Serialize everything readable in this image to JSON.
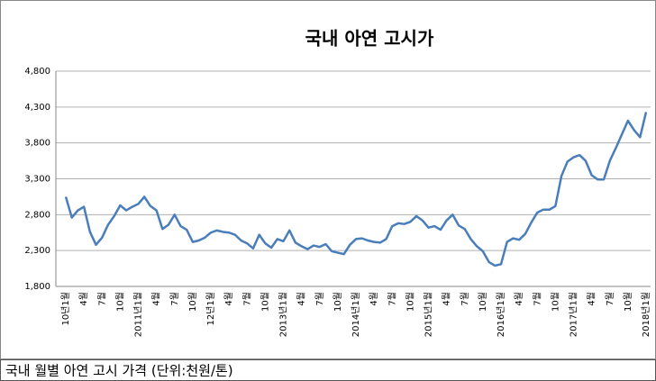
{
  "chart_data": {
    "type": "line",
    "title": "국내 아연 고시가",
    "caption": "국내 월별 아연 고시 가격 (단위:천원/톤)",
    "categories": [
      "10년1월",
      null,
      null,
      "4월",
      null,
      null,
      "7월",
      null,
      null,
      "10월",
      null,
      null,
      "2011년1월",
      null,
      null,
      "4월",
      null,
      null,
      "7월",
      null,
      null,
      "10월",
      null,
      null,
      "12년1월",
      null,
      null,
      "4월",
      null,
      null,
      "7월",
      null,
      null,
      "10월",
      null,
      null,
      "2013년1월",
      null,
      null,
      "4월",
      null,
      null,
      "7월",
      null,
      null,
      "10월",
      null,
      null,
      "2014년1월",
      null,
      null,
      "4월",
      null,
      null,
      "7월",
      null,
      null,
      "10월",
      null,
      null,
      "2015년1월",
      null,
      null,
      "4월",
      null,
      null,
      "7월",
      null,
      null,
      "10월",
      null,
      null,
      "2016년1월",
      null,
      null,
      "4월",
      null,
      null,
      "7월",
      null,
      null,
      "10월",
      null,
      null,
      "2017년1월",
      null,
      null,
      "4월",
      null,
      null,
      "7월",
      null,
      null,
      "10월",
      null,
      null,
      "2018년1월"
    ],
    "series": [
      {
        "name": "국내 아연 고시가",
        "color": "#4a7ebb",
        "values": [
          3050,
          2760,
          2860,
          2910,
          2560,
          2380,
          2480,
          2660,
          2780,
          2930,
          2860,
          2910,
          2950,
          3050,
          2920,
          2860,
          2600,
          2660,
          2800,
          2640,
          2590,
          2420,
          2440,
          2480,
          2550,
          2580,
          2560,
          2550,
          2520,
          2440,
          2400,
          2330,
          2520,
          2400,
          2340,
          2460,
          2430,
          2580,
          2410,
          2360,
          2320,
          2370,
          2350,
          2390,
          2290,
          2270,
          2250,
          2380,
          2460,
          2470,
          2440,
          2420,
          2410,
          2460,
          2640,
          2680,
          2670,
          2700,
          2780,
          2720,
          2620,
          2640,
          2590,
          2720,
          2800,
          2650,
          2600,
          2460,
          2360,
          2290,
          2140,
          2090,
          2110,
          2420,
          2470,
          2450,
          2530,
          2690,
          2830,
          2870,
          2870,
          2920,
          3340,
          3540,
          3600,
          3630,
          3550,
          3350,
          3290,
          3290,
          3550,
          3730,
          3920,
          4110,
          3980,
          3880,
          4230
        ]
      }
    ],
    "ylim": [
      1800,
      4800
    ],
    "yticks": [
      {
        "value": 1800,
        "label": "1,800"
      },
      {
        "value": 2300,
        "label": "2,300"
      },
      {
        "value": 2800,
        "label": "2,800"
      },
      {
        "value": 3300,
        "label": "3,300"
      },
      {
        "value": 3800,
        "label": "3,800"
      },
      {
        "value": 4300,
        "label": "4,300"
      },
      {
        "value": 4800,
        "label": "4,800"
      }
    ],
    "grid": true
  }
}
